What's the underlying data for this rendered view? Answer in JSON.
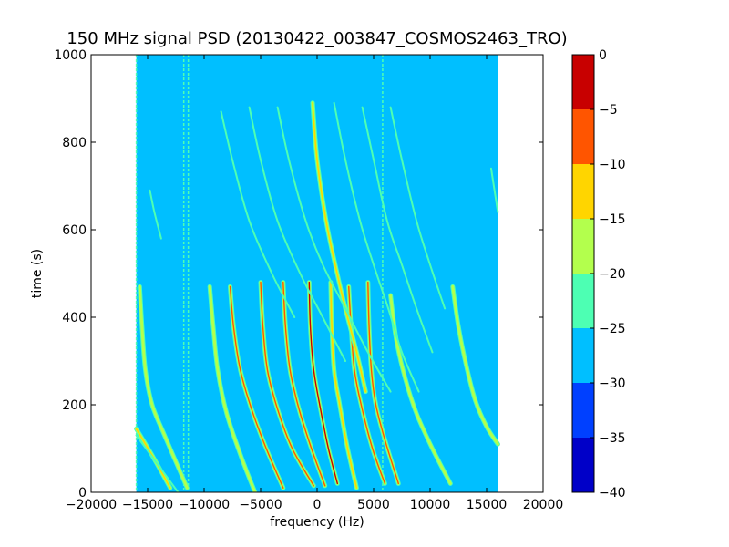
{
  "chart_data": {
    "type": "heatmap",
    "title": "150 MHz signal PSD (20130422_003847_COSMOS2463_TRO)",
    "xlabel": "frequency (Hz)",
    "ylabel": "time (s)",
    "xlim": [
      -20000,
      20000
    ],
    "ylim": [
      0,
      1000
    ],
    "xticks": [
      -20000,
      -15000,
      -10000,
      -5000,
      0,
      5000,
      10000,
      15000,
      20000
    ],
    "xtick_labels": [
      "−20000",
      "−15000",
      "−10000",
      "−5000",
      "0",
      "5000",
      "10000",
      "15000",
      "20000"
    ],
    "yticks": [
      0,
      200,
      400,
      600,
      800,
      1000
    ],
    "ytick_labels": [
      "0",
      "200",
      "400",
      "600",
      "800",
      "1000"
    ],
    "data_extent": {
      "x": [
        -16000,
        16000
      ],
      "y": [
        0,
        1000
      ]
    },
    "background_level": -27,
    "colorbar": {
      "range": [
        -40,
        0
      ],
      "levels": [
        {
          "from": -40,
          "to": -35,
          "color": "#0000c8"
        },
        {
          "from": -35,
          "to": -30,
          "color": "#0040ff"
        },
        {
          "from": -30,
          "to": -25,
          "color": "#00bfff"
        },
        {
          "from": -25,
          "to": -20,
          "color": "#4dffb3"
        },
        {
          "from": -20,
          "to": -15,
          "color": "#b3ff4d"
        },
        {
          "from": -15,
          "to": -10,
          "color": "#ffd500"
        },
        {
          "from": -10,
          "to": -5,
          "color": "#ff5500"
        },
        {
          "from": -5,
          "to": 0,
          "color": "#c80000"
        }
      ],
      "ticks": [
        0,
        -5,
        -10,
        -15,
        -20,
        -25,
        -30,
        -35,
        -40
      ],
      "tick_labels": [
        "0",
        "−5",
        "−10",
        "−15",
        "−20",
        "−25",
        "−30",
        "−35",
        "−40"
      ]
    },
    "traces": [
      {
        "points": [
          [
            -16000,
            145
          ],
          [
            -14500,
            80
          ],
          [
            -13000,
            10
          ]
        ],
        "level": -12
      },
      {
        "points": [
          [
            -16000,
            130
          ],
          [
            -14000,
            60
          ],
          [
            -12300,
            0
          ]
        ],
        "level": -22
      },
      {
        "points": [
          [
            -15700,
            470
          ],
          [
            -15500,
            380
          ],
          [
            -15200,
            280
          ],
          [
            -14600,
            200
          ],
          [
            -13500,
            130
          ],
          [
            -12000,
            40
          ],
          [
            -11500,
            10
          ]
        ],
        "level": -18
      },
      {
        "points": [
          [
            -9500,
            470
          ],
          [
            -9200,
            380
          ],
          [
            -8800,
            280
          ],
          [
            -8000,
            180
          ],
          [
            -6700,
            80
          ],
          [
            -5500,
            0
          ]
        ],
        "level": -18
      },
      {
        "points": [
          [
            -7700,
            470
          ],
          [
            -7400,
            380
          ],
          [
            -6800,
            280
          ],
          [
            -5800,
            190
          ],
          [
            -4500,
            100
          ],
          [
            -3000,
            10
          ]
        ],
        "level": -8
      },
      {
        "points": [
          [
            -5000,
            480
          ],
          [
            -4800,
            380
          ],
          [
            -4400,
            280
          ],
          [
            -3500,
            190
          ],
          [
            -2200,
            100
          ],
          [
            -300,
            15
          ]
        ],
        "level": -5
      },
      {
        "points": [
          [
            -3000,
            480
          ],
          [
            -2800,
            380
          ],
          [
            -2400,
            280
          ],
          [
            -1600,
            190
          ],
          [
            -500,
            100
          ],
          [
            700,
            15
          ]
        ],
        "level": -8
      },
      {
        "points": [
          [
            -700,
            480
          ],
          [
            -600,
            380
          ],
          [
            -300,
            280
          ],
          [
            300,
            190
          ],
          [
            1000,
            100
          ],
          [
            1800,
            20
          ]
        ],
        "level": -3
      },
      {
        "points": [
          [
            1200,
            480
          ],
          [
            1300,
            380
          ],
          [
            1500,
            280
          ],
          [
            2000,
            200
          ],
          [
            2700,
            100
          ],
          [
            3500,
            10
          ]
        ],
        "level": -10
      },
      {
        "points": [
          [
            2800,
            470
          ],
          [
            3000,
            380
          ],
          [
            3300,
            280
          ],
          [
            3900,
            200
          ],
          [
            4900,
            100
          ],
          [
            6000,
            20
          ]
        ],
        "level": -8
      },
      {
        "points": [
          [
            4500,
            480
          ],
          [
            4600,
            380
          ],
          [
            4800,
            280
          ],
          [
            5200,
            200
          ],
          [
            6000,
            120
          ],
          [
            7200,
            20
          ]
        ],
        "level": -5
      },
      {
        "points": [
          [
            6500,
            450
          ],
          [
            7000,
            350
          ],
          [
            7800,
            260
          ],
          [
            8800,
            180
          ],
          [
            10200,
            100
          ],
          [
            11800,
            20
          ]
        ],
        "level": -15
      },
      {
        "points": [
          [
            12000,
            470
          ],
          [
            12500,
            380
          ],
          [
            13200,
            290
          ],
          [
            14000,
            210
          ],
          [
            15000,
            150
          ],
          [
            16000,
            110
          ]
        ],
        "level": -18
      },
      {
        "points": [
          [
            -400,
            890
          ],
          [
            0,
            760
          ],
          [
            800,
            620
          ],
          [
            1600,
            520
          ],
          [
            2500,
            420
          ],
          [
            3500,
            320
          ],
          [
            4300,
            230
          ]
        ],
        "level": -12
      },
      {
        "points": [
          [
            -3500,
            880
          ],
          [
            -2500,
            760
          ],
          [
            -1000,
            620
          ],
          [
            500,
            520
          ],
          [
            2500,
            420
          ],
          [
            4500,
            320
          ],
          [
            6500,
            230
          ]
        ],
        "level": -22
      },
      {
        "points": [
          [
            -6000,
            880
          ],
          [
            -5000,
            760
          ],
          [
            -3500,
            620
          ],
          [
            -1500,
            500
          ],
          [
            500,
            400
          ],
          [
            2500,
            300
          ]
        ],
        "level": -22
      },
      {
        "points": [
          [
            -8500,
            870
          ],
          [
            -7500,
            760
          ],
          [
            -6000,
            620
          ],
          [
            -4000,
            500
          ],
          [
            -2000,
            400
          ]
        ],
        "level": -22
      },
      {
        "points": [
          [
            4000,
            880
          ],
          [
            5000,
            760
          ],
          [
            6200,
            620
          ],
          [
            7500,
            520
          ],
          [
            8800,
            420
          ],
          [
            10200,
            320
          ]
        ],
        "level": -22
      },
      {
        "points": [
          [
            6500,
            880
          ],
          [
            7500,
            760
          ],
          [
            8800,
            620
          ],
          [
            10000,
            520
          ],
          [
            11300,
            420
          ]
        ],
        "level": -22
      },
      {
        "points": [
          [
            1500,
            890
          ],
          [
            2500,
            760
          ],
          [
            3800,
            620
          ],
          [
            5000,
            520
          ],
          [
            6300,
            420
          ],
          [
            7500,
            320
          ],
          [
            9000,
            230
          ]
        ],
        "level": -22
      },
      {
        "points": [
          [
            15400,
            740
          ],
          [
            15700,
            690
          ],
          [
            16000,
            640
          ]
        ],
        "level": -22
      },
      {
        "points": [
          [
            -14800,
            690
          ],
          [
            -14400,
            640
          ],
          [
            -13800,
            580
          ]
        ],
        "level": -22
      }
    ],
    "vertical_lines": [
      {
        "x": -16000,
        "level": -22
      },
      {
        "x": -11800,
        "level": -22
      },
      {
        "x": -11400,
        "level": -22
      },
      {
        "x": 5800,
        "level": -22
      }
    ]
  }
}
